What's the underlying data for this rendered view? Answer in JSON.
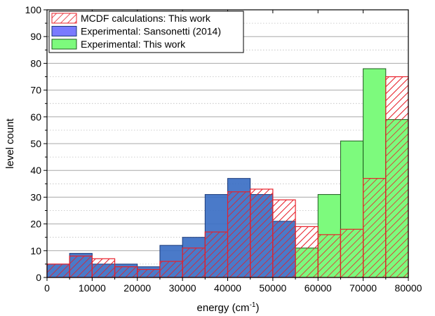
{
  "chart_data": {
    "type": "bar",
    "title": "",
    "xlabel": "energy (cm",
    "xlabel_sup": "-1",
    "xlabel_suffix": ")",
    "ylabel": "level count",
    "xlim": [
      0,
      80000
    ],
    "ylim": [
      0,
      100
    ],
    "x_ticks": [
      "0",
      "10000",
      "20000",
      "30000",
      "40000",
      "50000",
      "60000",
      "70000",
      "80000"
    ],
    "y_ticks": [
      "0",
      "10",
      "20",
      "30",
      "40",
      "50",
      "60",
      "70",
      "80",
      "90",
      "100"
    ],
    "bin_width": 5000,
    "bin_starts": [
      0,
      5000,
      10000,
      15000,
      20000,
      25000,
      30000,
      35000,
      40000,
      45000,
      50000,
      55000,
      60000,
      65000,
      70000,
      75000
    ],
    "grid": true,
    "legend_position": "top-left",
    "series": [
      {
        "name": "MCDF calculations: This work",
        "values": [
          5,
          8,
          7,
          4,
          3,
          6,
          11,
          17,
          32,
          33,
          29,
          19,
          16,
          18,
          37,
          75
        ],
        "color": "#e8202a",
        "style": "hatched"
      },
      {
        "name": "Experimental: Sansonetti (2014)",
        "values": [
          5,
          9,
          5,
          5,
          4,
          12,
          15,
          31,
          37,
          31,
          21,
          7,
          1,
          1,
          0,
          0
        ],
        "color": "#3b6fc4",
        "style": "solid"
      },
      {
        "name": "Experimental: This work",
        "values": [
          0,
          0,
          0,
          0,
          0,
          0,
          0,
          0,
          0,
          0,
          0,
          11,
          31,
          51,
          78,
          59
        ],
        "color": "#7dfa7d",
        "style": "solid"
      }
    ]
  }
}
